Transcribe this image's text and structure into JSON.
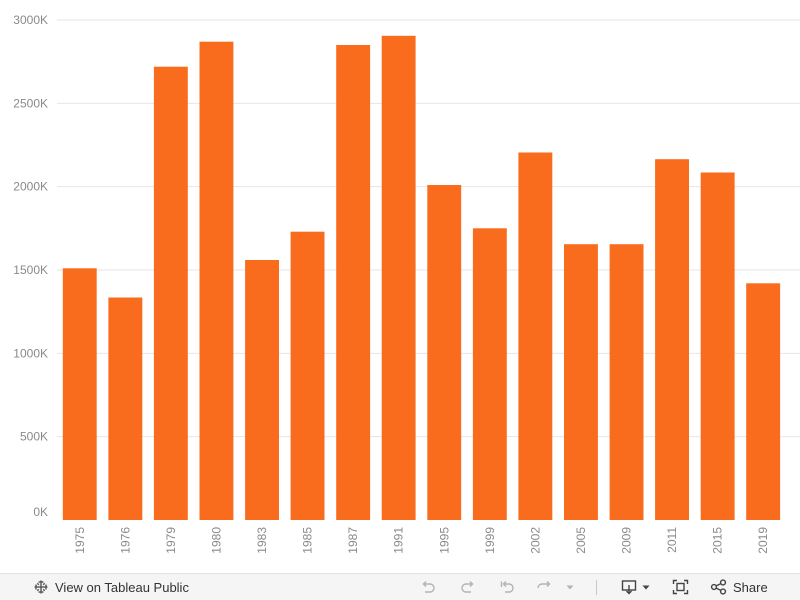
{
  "chart_data": {
    "type": "bar",
    "categories": [
      "1975",
      "1976",
      "1979",
      "1980",
      "1983",
      "1985",
      "1987",
      "1991",
      "1995",
      "1999",
      "2002",
      "2005",
      "2009",
      "2011",
      "2015",
      "2019"
    ],
    "values": [
      1510,
      1335,
      2720,
      2870,
      1560,
      1730,
      2850,
      2905,
      2010,
      1750,
      2205,
      1655,
      1655,
      2165,
      2085,
      1420
    ],
    "unit_suffix": "K",
    "y_ticks": [
      "0K",
      "500K",
      "1000K",
      "1500K",
      "2000K",
      "2500K",
      "3000K"
    ],
    "ylim": [
      0,
      3000
    ],
    "grid": true,
    "bar_color": "#f96c1e",
    "xlabel": "",
    "ylabel": "",
    "title": ""
  },
  "toolbar": {
    "view_label": "View on Tableau Public",
    "share_label": "Share",
    "view_icon": "tableau-logo-icon",
    "undo_icon": "undo-icon",
    "redo_icon": "redo-icon",
    "revert_icon": "revert-icon",
    "refresh_icon": "refresh-icon",
    "download_icon": "download-icon",
    "fullscreen_icon": "fullscreen-icon",
    "share_icon": "share-icon"
  }
}
